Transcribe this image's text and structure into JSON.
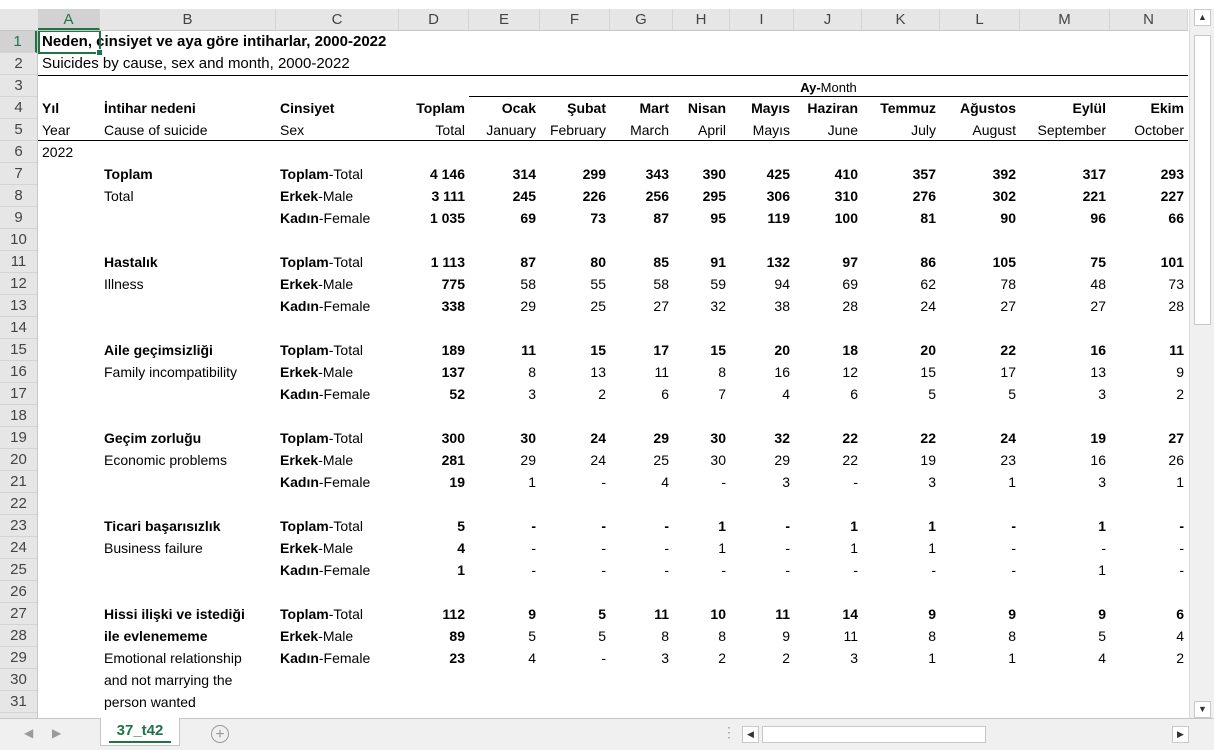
{
  "sheet": {
    "selected_cell": "A1",
    "tab_label": "37_t42"
  },
  "column_headers": [
    "A",
    "B",
    "C",
    "D",
    "E",
    "F",
    "G",
    "H",
    "I",
    "J",
    "K",
    "L",
    "M",
    "N"
  ],
  "row_numbers": [
    "1",
    "2",
    "3",
    "4",
    "5",
    "6",
    "7",
    "8",
    "9",
    "10",
    "11",
    "12",
    "13",
    "14",
    "15",
    "16",
    "17",
    "18",
    "19",
    "20",
    "21",
    "22",
    "23",
    "24",
    "25",
    "26",
    "27",
    "28",
    "29",
    "30",
    "31"
  ],
  "title_tr": "Neden, cinsiyet ve aya göre intiharlar, 2000-2022",
  "title_en": "Suicides by cause, sex and month, 2000-2022",
  "month_group": {
    "tr": "Ay-",
    "en": "Month"
  },
  "header_tr": [
    "Yıl",
    "İntihar nedeni",
    "Cinsiyet",
    "Toplam",
    "Ocak",
    "Şubat",
    "Mart",
    "Nisan",
    "Mayıs",
    "Haziran",
    "Temmuz",
    "Ağustos",
    "Eylül",
    "Ekim"
  ],
  "header_en": [
    "Year",
    "Cause of suicide",
    "Sex",
    "Total",
    "January",
    "February",
    "March",
    "April",
    "Mayıs",
    "June",
    "July",
    "August",
    "September",
    "October"
  ],
  "year": "2022",
  "sex_labels": {
    "total": {
      "tr": "Toplam",
      "en": "-Total"
    },
    "male": {
      "tr": "Erkek",
      "en": "-Male"
    },
    "female": {
      "tr": "Kadın",
      "en": "-Female"
    }
  },
  "groups": [
    {
      "cause_lines": [
        {
          "text": "Toplam",
          "bold": true
        },
        {
          "text": "Total",
          "bold": false
        }
      ],
      "rows": [
        [
          "4 146",
          "314",
          "299",
          "343",
          "390",
          "425",
          "410",
          "357",
          "392",
          "317",
          "293"
        ],
        [
          "3 111",
          "245",
          "226",
          "256",
          "295",
          "306",
          "310",
          "276",
          "302",
          "221",
          "227"
        ],
        [
          "1 035",
          "69",
          "73",
          "87",
          "95",
          "119",
          "100",
          "81",
          "90",
          "96",
          "66"
        ]
      ],
      "all_bold": true
    },
    {
      "cause_lines": [
        {
          "text": "Hastalık",
          "bold": true
        },
        {
          "text": "Illness",
          "bold": false
        }
      ],
      "rows": [
        [
          "1 113",
          "87",
          "80",
          "85",
          "91",
          "132",
          "97",
          "86",
          "105",
          "75",
          "101"
        ],
        [
          "775",
          "58",
          "55",
          "58",
          "59",
          "94",
          "69",
          "62",
          "78",
          "48",
          "73"
        ],
        [
          "338",
          "29",
          "25",
          "27",
          "32",
          "38",
          "28",
          "24",
          "27",
          "27",
          "28"
        ]
      ],
      "all_bold": false
    },
    {
      "cause_lines": [
        {
          "text": "Aile geçimsizliği",
          "bold": true
        },
        {
          "text": "Family incompatibility",
          "bold": false
        }
      ],
      "rows": [
        [
          "189",
          "11",
          "15",
          "17",
          "15",
          "20",
          "18",
          "20",
          "22",
          "16",
          "11"
        ],
        [
          "137",
          "8",
          "13",
          "11",
          "8",
          "16",
          "12",
          "15",
          "17",
          "13",
          "9"
        ],
        [
          "52",
          "3",
          "2",
          "6",
          "7",
          "4",
          "6",
          "5",
          "5",
          "3",
          "2"
        ]
      ],
      "all_bold": false
    },
    {
      "cause_lines": [
        {
          "text": "Geçim zorluğu",
          "bold": true
        },
        {
          "text": "Economic problems",
          "bold": false
        }
      ],
      "rows": [
        [
          "300",
          "30",
          "24",
          "29",
          "30",
          "32",
          "22",
          "22",
          "24",
          "19",
          "27"
        ],
        [
          "281",
          "29",
          "24",
          "25",
          "30",
          "29",
          "22",
          "19",
          "23",
          "16",
          "26"
        ],
        [
          "19",
          "1",
          "-",
          "4",
          "-",
          "3",
          "-",
          "3",
          "1",
          "3",
          "1"
        ]
      ],
      "all_bold": false
    },
    {
      "cause_lines": [
        {
          "text": "Ticari başarısızlık",
          "bold": true
        },
        {
          "text": "Business failure",
          "bold": false
        }
      ],
      "rows": [
        [
          "5",
          "-",
          "-",
          "-",
          "1",
          "-",
          "1",
          "1",
          "-",
          "1",
          "-"
        ],
        [
          "4",
          "-",
          "-",
          "-",
          "1",
          "-",
          "1",
          "1",
          "-",
          "-",
          "-"
        ],
        [
          "1",
          "-",
          "-",
          "-",
          "-",
          "-",
          "-",
          "-",
          "-",
          "1",
          "-"
        ]
      ],
      "all_bold": false
    },
    {
      "cause_lines": [
        {
          "text": "Hissi ilişki ve istediği",
          "bold": true
        },
        {
          "text": "ile evlenememe",
          "bold": true
        },
        {
          "text": "Emotional relationship",
          "bold": false
        },
        {
          "text": "and not marrying the",
          "bold": false
        },
        {
          "text": "person wanted",
          "bold": false
        }
      ],
      "rows": [
        [
          "112",
          "9",
          "5",
          "11",
          "10",
          "11",
          "14",
          "9",
          "9",
          "9",
          "6"
        ],
        [
          "89",
          "5",
          "5",
          "8",
          "8",
          "9",
          "11",
          "8",
          "8",
          "5",
          "4"
        ],
        [
          "23",
          "4",
          "-",
          "3",
          "2",
          "2",
          "3",
          "1",
          "1",
          "4",
          "2"
        ]
      ],
      "all_bold": false
    }
  ]
}
